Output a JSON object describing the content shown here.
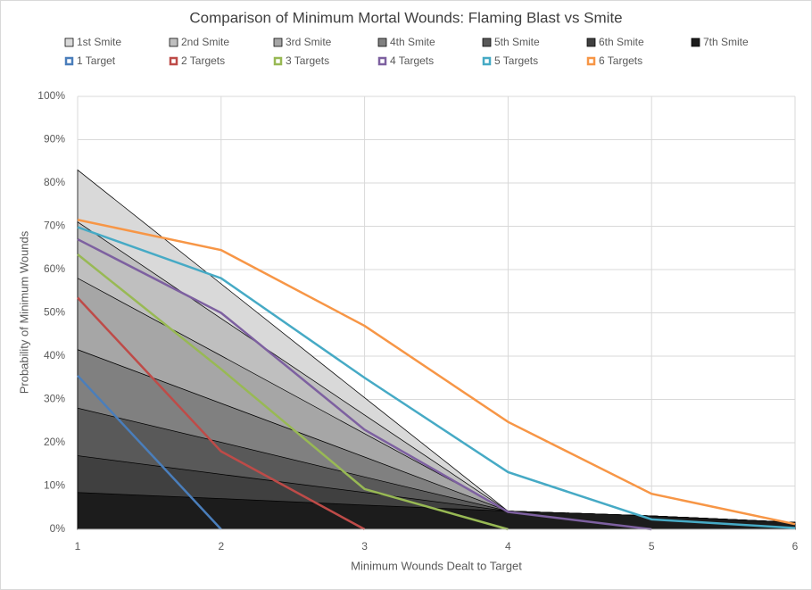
{
  "chart_data": {
    "type": "area",
    "title": "Comparison of Minimum Mortal Wounds: Flaming Blast vs Smite",
    "x_label": "Minimum Wounds Dealt to Target",
    "y_label": "Probability of Minimum Wounds",
    "x": [
      1,
      2,
      3,
      4,
      5,
      6
    ],
    "xlim": [
      1,
      6
    ],
    "xticks": [
      1,
      2,
      3,
      4,
      5,
      6
    ],
    "ylim": [
      0,
      100
    ],
    "yticks": [
      {
        "value": 0,
        "label": "0%"
      },
      {
        "value": 10,
        "label": "10%"
      },
      {
        "value": 20,
        "label": "20%"
      },
      {
        "value": 30,
        "label": "30%"
      },
      {
        "value": 40,
        "label": "40%"
      },
      {
        "value": 50,
        "label": "50%"
      },
      {
        "value": 60,
        "label": "60%"
      },
      {
        "value": 70,
        "label": "70%"
      },
      {
        "value": 80,
        "label": "80%"
      },
      {
        "value": 90,
        "label": "90%"
      },
      {
        "value": 100,
        "label": "100%"
      }
    ],
    "grid": true,
    "legend": "top",
    "series": [
      {
        "name": "1st Smite",
        "type": "area",
        "color": "#d9d9d9",
        "values": [
          83,
          56.7,
          30.4,
          4.2,
          3.1,
          1.6
        ]
      },
      {
        "name": "2nd Smite",
        "type": "area",
        "color": "#bfbfbf",
        "values": [
          71,
          48.7,
          26.4,
          4.2,
          3.1,
          1.6
        ]
      },
      {
        "name": "3rd Smite",
        "type": "area",
        "color": "#a6a6a6",
        "values": [
          58,
          40.1,
          22.1,
          4.2,
          3.1,
          1.6
        ]
      },
      {
        "name": "4th Smite",
        "type": "area",
        "color": "#808080",
        "values": [
          41.5,
          29.1,
          16.7,
          4.2,
          3.1,
          1.6
        ]
      },
      {
        "name": "5th Smite",
        "type": "area",
        "color": "#595959",
        "values": [
          28,
          20.1,
          12.1,
          4.2,
          3.1,
          1.6
        ]
      },
      {
        "name": "6th Smite",
        "type": "area",
        "color": "#404040",
        "values": [
          17,
          12.7,
          8.5,
          4.2,
          3.1,
          1.6
        ]
      },
      {
        "name": "7th Smite",
        "type": "area",
        "color": "#1c1c1c",
        "values": [
          8.5,
          7.1,
          5.6,
          4.2,
          3.1,
          1.6
        ]
      },
      {
        "name": "1 Target",
        "type": "line",
        "color": "#4a7ebb",
        "values": [
          35.5,
          0,
          null,
          null,
          null,
          null
        ]
      },
      {
        "name": "2 Targets",
        "type": "line",
        "color": "#be4b48",
        "values": [
          53.5,
          18,
          0,
          null,
          null,
          null
        ]
      },
      {
        "name": "3 Targets",
        "type": "line",
        "color": "#98b954",
        "values": [
          63.5,
          37,
          9.3,
          0,
          null,
          null
        ]
      },
      {
        "name": "4 Targets",
        "type": "line",
        "color": "#7d60a0",
        "values": [
          67,
          50,
          23,
          4,
          0,
          null
        ]
      },
      {
        "name": "5 Targets",
        "type": "line",
        "color": "#46aac5",
        "values": [
          69.8,
          58,
          35,
          13.2,
          2.3,
          0.3
        ]
      },
      {
        "name": "6 Targets",
        "type": "line",
        "color": "#f79646",
        "values": [
          71.5,
          64.5,
          47,
          24.8,
          8.2,
          1.2
        ]
      }
    ]
  }
}
